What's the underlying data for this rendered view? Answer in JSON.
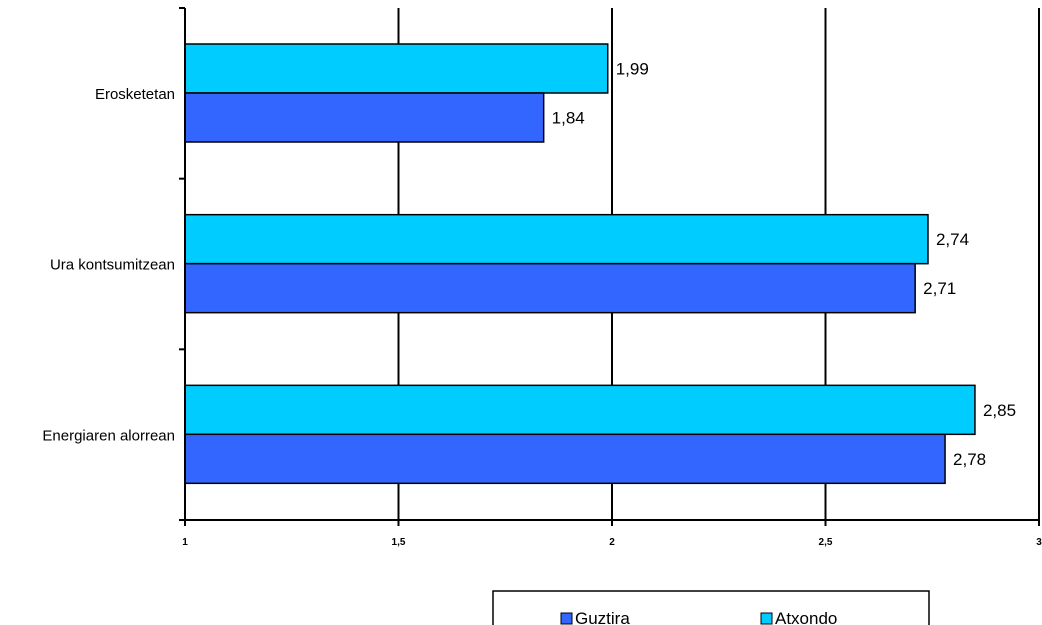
{
  "chart_data": {
    "type": "bar",
    "orientation": "horizontal",
    "categories": [
      "Erosketetan",
      "Ura kontsumitzean",
      "Energiaren alorrean"
    ],
    "series": [
      {
        "name": "Atxondo",
        "values": [
          1.99,
          2.74,
          2.85
        ],
        "labels": [
          "1,99",
          "2,74",
          "2,85"
        ],
        "color": "#00CCFF"
      },
      {
        "name": "Guztira",
        "values": [
          1.84,
          2.71,
          2.78
        ],
        "labels": [
          "1,84",
          "2,71",
          "2,78"
        ],
        "color": "#3366FF"
      }
    ],
    "xlim": [
      1,
      3
    ],
    "xticks": [
      1,
      1.5,
      2,
      2.5,
      3
    ],
    "xtick_labels": [
      "1",
      "1,5",
      "2",
      "2,5",
      "3"
    ],
    "grid": "vertical",
    "legend_position": "bottom",
    "legend_order": [
      "Guztira",
      "Atxondo"
    ],
    "title": "",
    "xlabel": "",
    "ylabel": ""
  }
}
